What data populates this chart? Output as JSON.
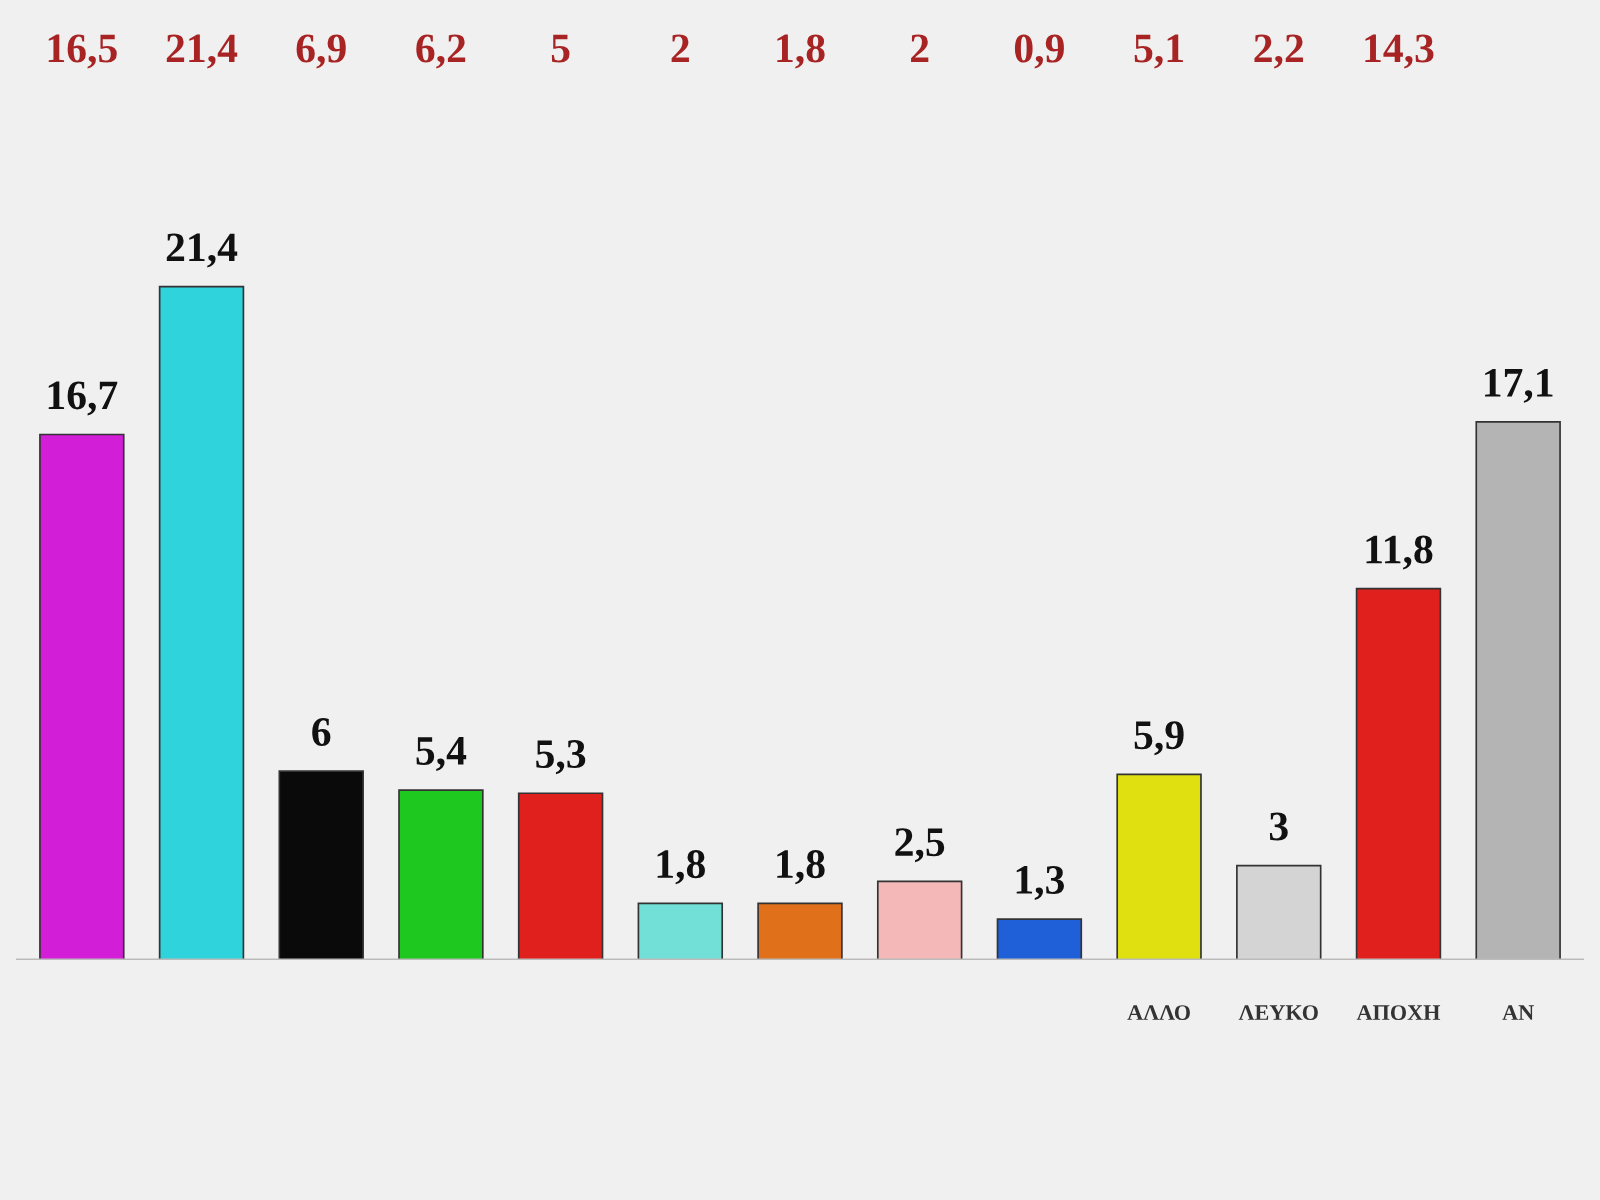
{
  "chart_data": {
    "type": "bar",
    "categories": [
      null,
      null,
      null,
      null,
      null,
      null,
      null,
      null,
      null,
      "ΑΛΛΟ",
      "ΛΕΥΚΟ",
      "ΑΠΟΧΗ",
      "ΑΝ"
    ],
    "values": [
      16.7,
      21.4,
      6,
      5.4,
      5.3,
      1.8,
      1.8,
      2.5,
      1.3,
      5.9,
      3,
      11.8,
      17.1
    ],
    "value_labels": [
      "16,7",
      "21,4",
      "6",
      "5,4",
      "5,3",
      "1,8",
      "1,8",
      "2,5",
      "1,3",
      "5,9",
      "3",
      "11,8",
      "17,1"
    ],
    "colors": [
      "#d21ed6",
      "#2ed3dc",
      "#0a0a0a",
      "#1ec81e",
      "#e0201c",
      "#72e0d6",
      "#e0701a",
      "#f5b8b8",
      "#1f5fd8",
      "#e0e010",
      "#d4d4d4",
      "#e0201c",
      "#b4b4b4"
    ],
    "annotations": [
      "16,5",
      "21,4",
      "6,9",
      "6,2",
      "5",
      "2",
      "1,8",
      "2",
      "0,9",
      "5,1",
      "2,2",
      "14,3"
    ]
  }
}
